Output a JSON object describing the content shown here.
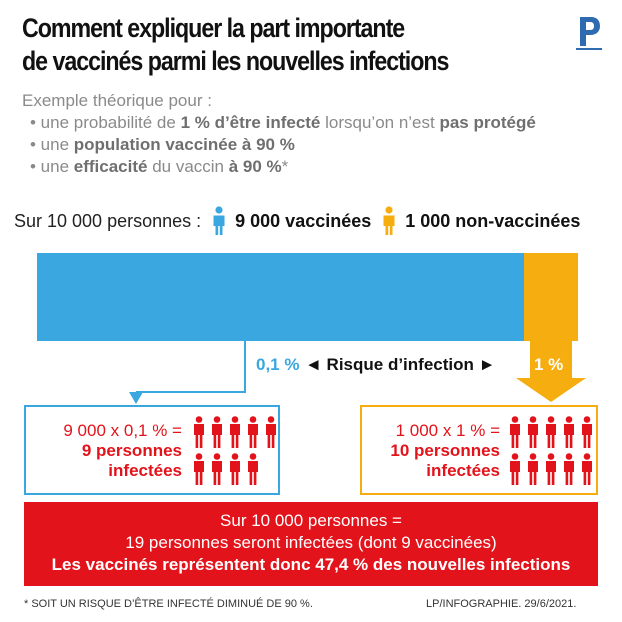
{
  "title": {
    "line1": "Comment expliquer la part importante",
    "line2": "de vaccinés parmi les nouvelles infections"
  },
  "logo": {
    "glyph": "P",
    "color": "#2f6bb1"
  },
  "intro": {
    "lead": "Exemple théorique pour :",
    "b1_pre": "• une probabilité de ",
    "b1_bold1": "1 % d’être infecté",
    "b1_mid": " lorsqu’on n’est ",
    "b1_bold2": "pas protégé",
    "b2_pre": "• une ",
    "b2_bold": "population vaccinée à 90 %",
    "b3_pre": "• une ",
    "b3_bold1": "efficacité",
    "b3_mid": " du vaccin ",
    "b3_bold2": "à 90 %",
    "b3_suffix": "*"
  },
  "persons": {
    "label": "Sur 10 000 personnes :",
    "vaccinated": "9 000 vaccinées",
    "unvaccinated": "1 000 non-vaccinées"
  },
  "colors": {
    "blue": "#3aa7e1",
    "yellow": "#f5ad0f",
    "red": "#e3131b"
  },
  "risk": {
    "blue_pct": "0,1 %",
    "label": "◄ Risque d’infection ►",
    "yellow_pct": "1 %"
  },
  "left_box": {
    "equation": "9 000 x 0,1 % =",
    "result1": "9 personnes",
    "result2": "infectées",
    "count": 9
  },
  "right_box": {
    "equation": "1 000 x 1 % =",
    "result1": "10 personnes",
    "result2": "infectées",
    "count": 10
  },
  "summary": {
    "line1": "Sur 10 000 personnes =",
    "line2": "19 personnes seront infectées (dont 9 vaccinées)",
    "line3": "Les vaccinés représentent donc 47,4 % des nouvelles infections"
  },
  "footer": {
    "note": "* SOIT UN RISQUE D’ÊTRE INFECTÉ DIMINUÉ DE 90 %.",
    "credit": "LP/INFOGRAPHIE.  29/6/2021."
  }
}
